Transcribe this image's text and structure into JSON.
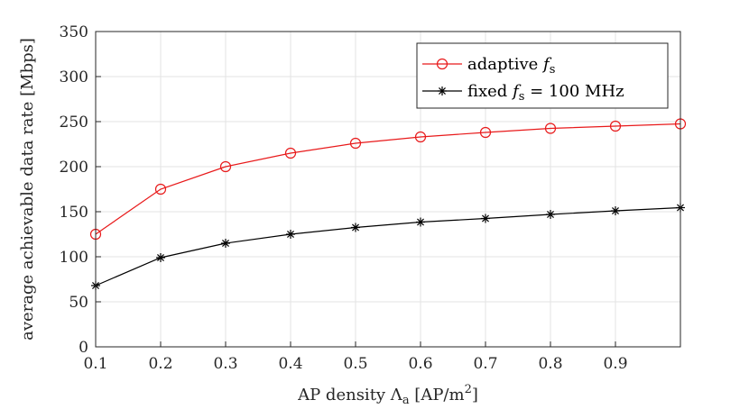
{
  "chart_data": {
    "type": "line",
    "x": [
      0.1,
      0.2,
      0.3,
      0.4,
      0.5,
      0.6,
      0.7,
      0.8,
      0.9,
      1.0
    ],
    "xlim": [
      0.1,
      1.0
    ],
    "ylim": [
      0,
      350
    ],
    "xticks": [
      "0.1",
      "0.2",
      "0.3",
      "0.4",
      "0.5",
      "0.6",
      "0.7",
      "0.8",
      "0.9"
    ],
    "yticks": [
      "0",
      "50",
      "100",
      "150",
      "200",
      "250",
      "300",
      "350"
    ],
    "grid": true,
    "xlabel": {
      "main": "AP density Λ",
      "sub": "a",
      "tail": " [AP/m",
      "sup": "2",
      "end": "]"
    },
    "ylabel": "average achievable data rate [Mbps]",
    "legend_position": "top-right",
    "series": [
      {
        "name": "adaptive f_s",
        "legend": {
          "prefix": "adaptive ",
          "var": "f",
          "sub": "s",
          "suffix": ""
        },
        "color": "#e8191a",
        "marker": "circle",
        "values": [
          125,
          175,
          200,
          215,
          226,
          233,
          238,
          242.5,
          245,
          247.5
        ]
      },
      {
        "name": "fixed f_s = 100 MHz",
        "legend": {
          "prefix": "fixed ",
          "var": "f",
          "sub": "s",
          "suffix": " = 100 MHz"
        },
        "color": "#000000",
        "marker": "asterisk",
        "values": [
          68,
          99,
          115,
          125,
          132.5,
          138.5,
          142.5,
          147,
          151,
          154.5
        ]
      }
    ]
  }
}
